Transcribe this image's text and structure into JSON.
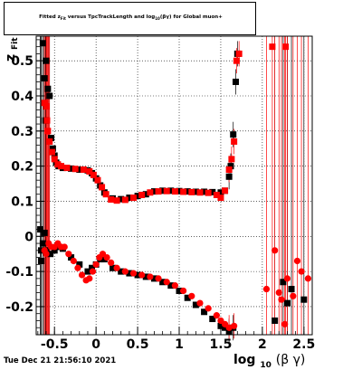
{
  "chart_data": {
    "type": "scatter",
    "title": "Fitted  z_Fit  versus TpcTrackLength and log10(βγ) for Global muon+",
    "title_parts": {
      "pre": "Fitted  z",
      "sub1": "Fit",
      "mid": "  versus TpcTrackLength and log",
      "sub2": "10",
      "post": "(βγ) for Global muon+"
    },
    "xlabel": "log10(βγ)",
    "xlabel_parts": {
      "pre": "log",
      "sub": "10",
      "post": "(β γ)"
    },
    "ylabel_parts": {
      "main": "z",
      "sub": "Fit"
    },
    "xlim": [
      -0.72,
      2.6
    ],
    "ylim": [
      -0.28,
      0.57
    ],
    "grid": true,
    "x_ticks": [
      -0.5,
      0,
      0.5,
      1,
      1.5,
      2,
      2.5
    ],
    "x_tick_labels": [
      "-0.5",
      "0",
      "0.5",
      "1",
      "1.5",
      "2",
      "2.5"
    ],
    "y_ticks": [
      -0.2,
      -0.1,
      0,
      0.1,
      0.2,
      0.3,
      0.4,
      0.5
    ],
    "y_tick_labels": [
      "-0.2",
      "-0.1",
      "0",
      "0.1",
      "0.2",
      "0.3",
      "0.4",
      "0.5"
    ],
    "series": [
      {
        "color": "#000000",
        "marker": "square",
        "points": [
          [
            -0.67,
            0.02
          ],
          [
            -0.66,
            -0.04
          ],
          [
            -0.64,
            0.55
          ],
          [
            -0.62,
            0.45
          ],
          [
            -0.61,
            0.33
          ],
          [
            -0.6,
            0.5
          ],
          [
            -0.58,
            0.42
          ],
          [
            -0.56,
            0.4
          ],
          [
            -0.54,
            0.28
          ],
          [
            -0.52,
            0.25
          ],
          [
            -0.5,
            0.23
          ],
          [
            -0.48,
            0.21
          ],
          [
            -0.45,
            0.2
          ],
          [
            -0.4,
            0.195
          ],
          [
            -0.3,
            0.193
          ],
          [
            -0.2,
            0.19
          ],
          [
            -0.1,
            0.188
          ],
          [
            -0.05,
            0.18
          ],
          [
            0.0,
            0.165
          ],
          [
            0.05,
            0.145
          ],
          [
            0.1,
            0.125
          ],
          [
            0.2,
            0.108
          ],
          [
            0.3,
            0.106
          ],
          [
            0.4,
            0.11
          ],
          [
            0.5,
            0.115
          ],
          [
            0.6,
            0.12
          ],
          [
            0.7,
            0.128
          ],
          [
            0.8,
            0.13
          ],
          [
            0.9,
            0.13
          ],
          [
            1.0,
            0.129
          ],
          [
            1.1,
            0.128
          ],
          [
            1.2,
            0.127
          ],
          [
            1.3,
            0.127
          ],
          [
            1.4,
            0.126
          ],
          [
            1.5,
            0.125
          ],
          [
            1.55,
            0.13
          ],
          [
            1.6,
            0.17
          ],
          [
            1.62,
            0.2
          ],
          [
            1.65,
            0.29
          ],
          [
            1.68,
            0.44
          ],
          [
            1.7,
            0.52
          ],
          [
            -0.66,
            -0.07
          ],
          [
            -0.64,
            -0.02
          ],
          [
            -0.62,
            0.01
          ],
          [
            -0.6,
            -0.04
          ],
          [
            -0.55,
            -0.05
          ],
          [
            -0.5,
            -0.04
          ],
          [
            -0.45,
            -0.03
          ],
          [
            -0.4,
            -0.035
          ],
          [
            -0.3,
            -0.06
          ],
          [
            -0.2,
            -0.08
          ],
          [
            -0.1,
            -0.1
          ],
          [
            -0.05,
            -0.09
          ],
          [
            0.0,
            -0.08
          ],
          [
            0.05,
            -0.065
          ],
          [
            0.1,
            -0.065
          ],
          [
            0.2,
            -0.09
          ],
          [
            0.3,
            -0.1
          ],
          [
            0.4,
            -0.105
          ],
          [
            0.5,
            -0.11
          ],
          [
            0.6,
            -0.115
          ],
          [
            0.7,
            -0.12
          ],
          [
            0.8,
            -0.13
          ],
          [
            0.9,
            -0.14
          ],
          [
            1.0,
            -0.155
          ],
          [
            1.1,
            -0.175
          ],
          [
            1.2,
            -0.195
          ],
          [
            1.3,
            -0.215
          ],
          [
            1.4,
            -0.235
          ],
          [
            1.5,
            -0.255
          ],
          [
            1.55,
            -0.26
          ],
          [
            1.6,
            -0.27
          ],
          [
            1.65,
            -0.26
          ],
          [
            2.15,
            -0.24
          ],
          [
            2.25,
            -0.13
          ],
          [
            2.3,
            -0.19
          ],
          [
            2.35,
            -0.15
          ],
          [
            2.5,
            -0.18
          ]
        ]
      },
      {
        "color": "#ff0000",
        "marker": "square",
        "points": [
          [
            -0.62,
            0.38
          ],
          [
            -0.6,
            0.37
          ],
          [
            -0.59,
            0.33
          ],
          [
            -0.58,
            0.3
          ],
          [
            -0.56,
            0.27
          ],
          [
            -0.53,
            0.24
          ],
          [
            -0.5,
            0.22
          ],
          [
            -0.46,
            0.205
          ],
          [
            -0.42,
            0.2
          ],
          [
            -0.35,
            0.195
          ],
          [
            -0.25,
            0.192
          ],
          [
            -0.15,
            0.19
          ],
          [
            -0.08,
            0.185
          ],
          [
            -0.03,
            0.175
          ],
          [
            0.02,
            0.16
          ],
          [
            0.07,
            0.14
          ],
          [
            0.12,
            0.12
          ],
          [
            0.18,
            0.105
          ],
          [
            0.25,
            0.102
          ],
          [
            0.35,
            0.104
          ],
          [
            0.45,
            0.11
          ],
          [
            0.55,
            0.118
          ],
          [
            0.65,
            0.125
          ],
          [
            0.75,
            0.128
          ],
          [
            0.85,
            0.129
          ],
          [
            0.95,
            0.128
          ],
          [
            1.05,
            0.127
          ],
          [
            1.15,
            0.126
          ],
          [
            1.25,
            0.125
          ],
          [
            1.35,
            0.124
          ],
          [
            1.45,
            0.118
          ],
          [
            1.5,
            0.11
          ],
          [
            1.55,
            0.13
          ],
          [
            1.6,
            0.19
          ],
          [
            1.63,
            0.22
          ],
          [
            1.66,
            0.27
          ],
          [
            1.69,
            0.5
          ],
          [
            1.72,
            0.52
          ],
          [
            2.12,
            0.54
          ],
          [
            2.28,
            0.54
          ]
        ]
      },
      {
        "color": "#ff0000",
        "marker": "circle",
        "points": [
          [
            -0.62,
            -0.04
          ],
          [
            -0.6,
            -0.05
          ],
          [
            -0.57,
            -0.02
          ],
          [
            -0.54,
            -0.03
          ],
          [
            -0.5,
            -0.03
          ],
          [
            -0.46,
            -0.02
          ],
          [
            -0.42,
            -0.03
          ],
          [
            -0.38,
            -0.03
          ],
          [
            -0.33,
            -0.05
          ],
          [
            -0.27,
            -0.07
          ],
          [
            -0.22,
            -0.09
          ],
          [
            -0.17,
            -0.11
          ],
          [
            -0.12,
            -0.125
          ],
          [
            -0.08,
            -0.12
          ],
          [
            -0.04,
            -0.1
          ],
          [
            0.0,
            -0.08
          ],
          [
            0.04,
            -0.06
          ],
          [
            0.08,
            -0.05
          ],
          [
            0.13,
            -0.06
          ],
          [
            0.18,
            -0.075
          ],
          [
            0.25,
            -0.09
          ],
          [
            0.35,
            -0.1
          ],
          [
            0.45,
            -0.105
          ],
          [
            0.55,
            -0.11
          ],
          [
            0.65,
            -0.115
          ],
          [
            0.75,
            -0.12
          ],
          [
            0.85,
            -0.13
          ],
          [
            0.95,
            -0.14
          ],
          [
            1.05,
            -0.155
          ],
          [
            1.15,
            -0.17
          ],
          [
            1.25,
            -0.19
          ],
          [
            1.35,
            -0.205
          ],
          [
            1.45,
            -0.225
          ],
          [
            1.5,
            -0.24
          ],
          [
            1.55,
            -0.25
          ],
          [
            1.6,
            -0.26
          ],
          [
            1.66,
            -0.255
          ],
          [
            2.05,
            -0.15
          ],
          [
            2.15,
            -0.04
          ],
          [
            2.2,
            -0.16
          ],
          [
            2.23,
            -0.18
          ],
          [
            2.27,
            -0.25
          ],
          [
            2.3,
            -0.12
          ],
          [
            2.37,
            -0.17
          ],
          [
            2.42,
            -0.07
          ],
          [
            2.47,
            -0.1
          ],
          [
            2.55,
            -0.12
          ]
        ]
      }
    ]
  },
  "footer": {
    "timestamp": "Tue Dec 21 21:56:10 2021"
  }
}
